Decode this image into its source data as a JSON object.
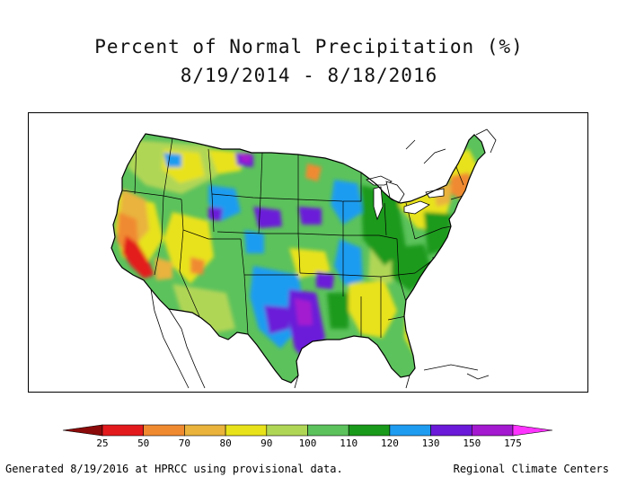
{
  "title_line1": "Percent of Normal Precipitation (%)",
  "title_line2": "8/19/2014 - 8/18/2016",
  "legend": {
    "labels": [
      "25",
      "50",
      "70",
      "80",
      "90",
      "100",
      "110",
      "120",
      "130",
      "150",
      "175"
    ],
    "colors": [
      "#8b0a0a",
      "#e31a1c",
      "#f08a30",
      "#e9b33c",
      "#e8e21a",
      "#b0d656",
      "#5cc25c",
      "#1a9a1a",
      "#1e9cf0",
      "#6a1ad8",
      "#a41ad0"
    ],
    "low_tip_color": "#8b0a0a",
    "high_tip_color": "#ff33ff"
  },
  "map": {
    "background_color": "#5cc25c",
    "outline_color": "#000000"
  },
  "footer": {
    "left": "Generated 8/19/2016 at HPRCC using provisional data.",
    "right": "Regional Climate Centers"
  }
}
